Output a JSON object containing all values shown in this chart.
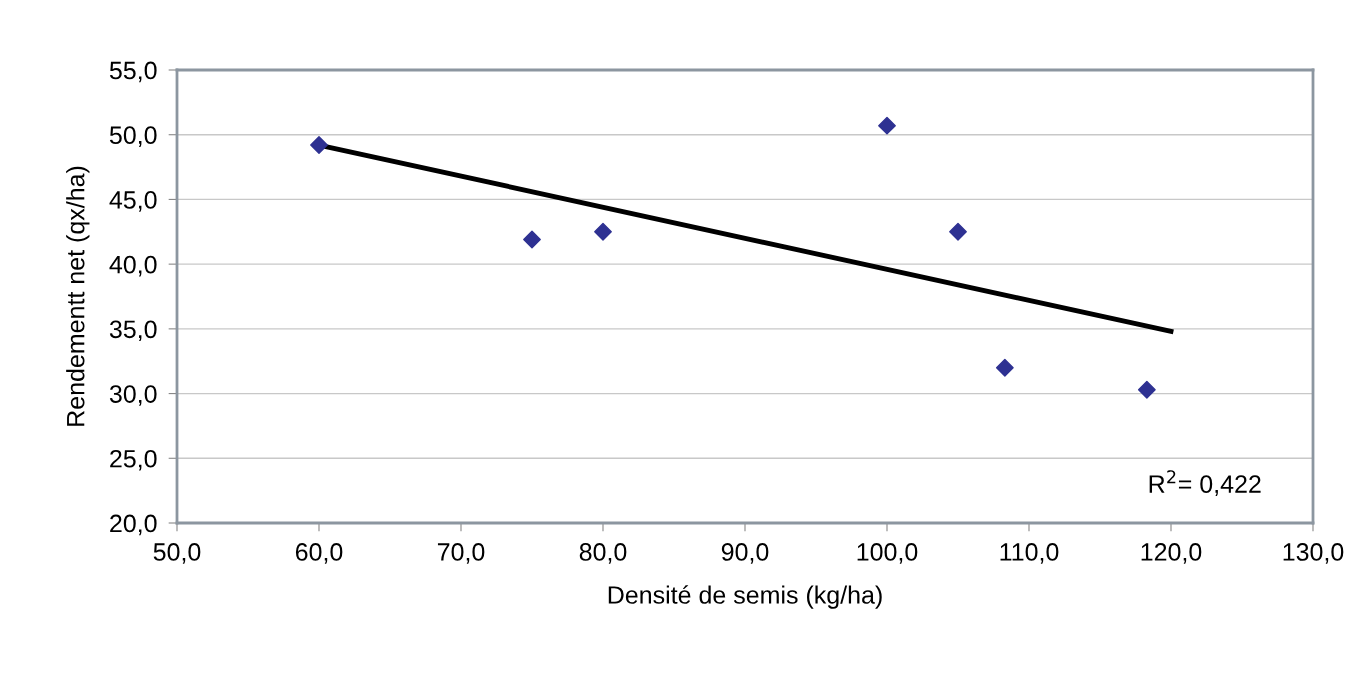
{
  "chart_data": {
    "type": "scatter",
    "xlabel": "Densité de semis (kg/ha)",
    "ylabel": "Rendementt net (qx/ha)",
    "series": [
      {
        "color": "#2e3192",
        "marker": "diamond",
        "x": [
          60,
          75,
          80,
          100,
          105,
          108.3,
          118.3
        ],
        "values": [
          49.2,
          41.9,
          42.5,
          50.7,
          42.5,
          32.0,
          30.3
        ]
      },
      {
        "type": "line",
        "color": "#000000",
        "line_style": "solid",
        "x": [
          60,
          120
        ],
        "values": [
          49.2,
          34.8
        ]
      }
    ],
    "xlim": [
      50,
      130
    ],
    "ylim": [
      20,
      55
    ],
    "xticks": [
      {
        "value": 50,
        "label": "50,0"
      },
      {
        "value": 60,
        "label": "60,0"
      },
      {
        "value": 70,
        "label": "70,0"
      },
      {
        "value": 80,
        "label": "80,0"
      },
      {
        "value": 90,
        "label": "90,0"
      },
      {
        "value": 100,
        "label": "100,0"
      },
      {
        "value": 110,
        "label": "110,0"
      },
      {
        "value": 120,
        "label": "120,0"
      },
      {
        "value": 130,
        "label": "130,0"
      }
    ],
    "yticks": [
      {
        "value": 20,
        "label": "20,0"
      },
      {
        "value": 25,
        "label": "25,0"
      },
      {
        "value": 30,
        "label": "30,0"
      },
      {
        "value": 35,
        "label": "35,0"
      },
      {
        "value": 40,
        "label": "40,0"
      },
      {
        "value": 45,
        "label": "45,0"
      },
      {
        "value": 50,
        "label": "50,0"
      },
      {
        "value": 55,
        "label": "55,0"
      }
    ],
    "grid": "y",
    "legend": false,
    "annotations": [
      "R$^{2}$= 0,422"
    ]
  }
}
